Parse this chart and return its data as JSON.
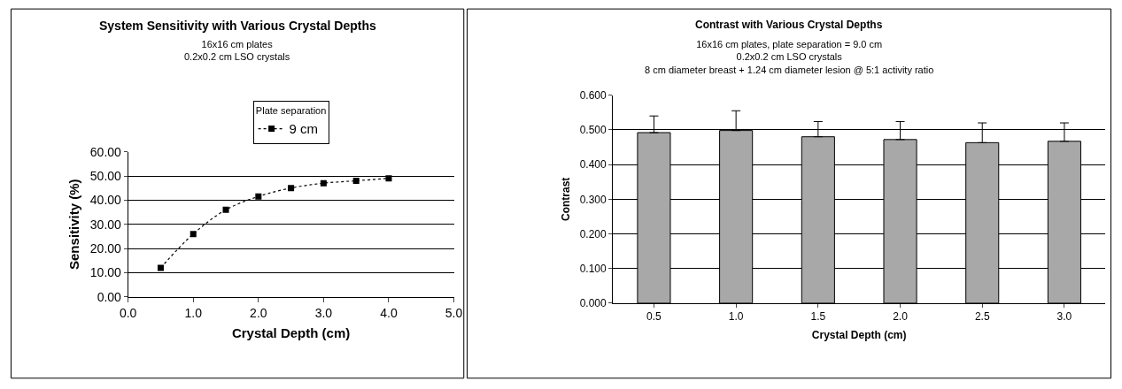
{
  "chart_data": [
    {
      "type": "line",
      "title": "System Sensitivity with Various Crystal Depths",
      "subtitle": "16x16 cm plates\n0.2x0.2 cm LSO crystals",
      "legend_title": "Plate separation",
      "xlabel": "Crystal Depth (cm)",
      "ylabel": "Sensitivity (%)",
      "x": [
        0.5,
        1.0,
        1.5,
        2.0,
        2.5,
        3.0,
        3.5,
        4.0
      ],
      "series": [
        {
          "name": "9 cm",
          "color": "#000000",
          "values": [
            12,
            26,
            36,
            41.5,
            45,
            47,
            48,
            49
          ]
        }
      ],
      "xlim": [
        0,
        5
      ],
      "xticks": [
        {
          "value": 0,
          "label": "0.0"
        },
        {
          "value": 1,
          "label": "1.0"
        },
        {
          "value": 2,
          "label": "2.0"
        },
        {
          "value": 3,
          "label": "3.0"
        },
        {
          "value": 4,
          "label": "4.0"
        },
        {
          "value": 5,
          "label": "5.0"
        }
      ],
      "ylim": [
        0,
        60
      ],
      "yticks": [
        {
          "value": 0,
          "label": "0.00"
        },
        {
          "value": 10,
          "label": "10.00"
        },
        {
          "value": 20,
          "label": "20.00"
        },
        {
          "value": 30,
          "label": "30.00"
        },
        {
          "value": 40,
          "label": "40.00"
        },
        {
          "value": 50,
          "label": "50.00"
        },
        {
          "value": 60,
          "label": "60.00"
        }
      ],
      "grid": "y",
      "legend": "top",
      "marker": "square",
      "line_style": "dotted"
    },
    {
      "type": "bar",
      "title": "Contrast with Various Crystal Depths",
      "subtitle": "16x16 cm plates, plate separation = 9.0 cm\n0.2x0.2 cm LSO crystals\n8 cm diameter breast + 1.24 cm diameter lesion @ 5:1 activity ratio",
      "xlabel": "Crystal Depth (cm)",
      "ylabel": "Contrast",
      "categories": [
        "0.5",
        "1.0",
        "1.5",
        "2.0",
        "2.5",
        "3.0"
      ],
      "values": [
        0.492,
        0.498,
        0.48,
        0.472,
        0.463,
        0.467
      ],
      "errors": [
        [
          0.492,
          0.54
        ],
        [
          0.498,
          0.555
        ],
        [
          0.48,
          0.524
        ],
        [
          0.472,
          0.524
        ],
        [
          0.463,
          0.52
        ],
        [
          0.467,
          0.52
        ]
      ],
      "color": "#a8a8a8",
      "ylim": [
        0,
        0.6
      ],
      "yticks": [
        {
          "value": 0,
          "label": "0.000"
        },
        {
          "value": 0.1,
          "label": "0.100"
        },
        {
          "value": 0.2,
          "label": "0.200"
        },
        {
          "value": 0.3,
          "label": "0.300"
        },
        {
          "value": 0.4,
          "label": "0.400"
        },
        {
          "value": 0.5,
          "label": "0.500"
        },
        {
          "value": 0.6,
          "label": "0.600"
        }
      ],
      "grid": "y"
    }
  ]
}
